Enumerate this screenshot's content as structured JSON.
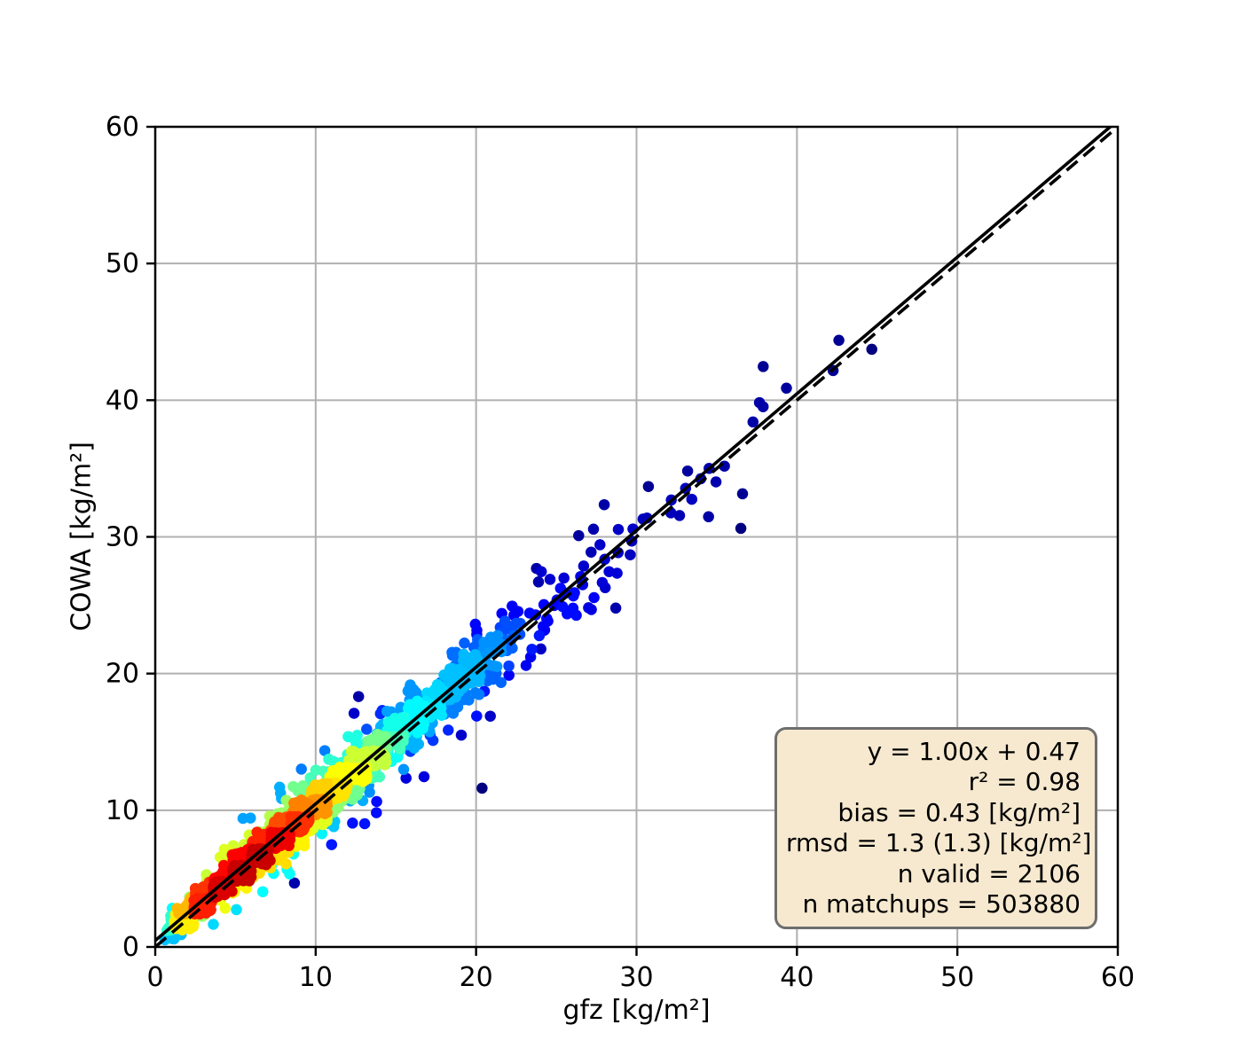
{
  "chart_data": {
    "type": "scatter",
    "subtype": "density-colored validation scatterplot (jet colormap: navy = sparse, red = dense)",
    "title": "",
    "xlabel": "gfz [kg/m²]",
    "ylabel": "COWA [kg/m²]",
    "xlim": [
      0,
      60
    ],
    "ylim": [
      0,
      60
    ],
    "xticks": [
      0,
      10,
      20,
      30,
      40,
      50,
      60
    ],
    "yticks": [
      0,
      10,
      20,
      30,
      40,
      50,
      60
    ],
    "grid": true,
    "grid_color": "#b0b0b0",
    "axis_color": "#000000",
    "identity_line": {
      "style": "dashed",
      "color": "#000000",
      "from": [
        0,
        0
      ],
      "to": [
        60,
        60
      ]
    },
    "fit_line": {
      "style": "solid",
      "color": "#000000",
      "slope": 1.0,
      "intercept": 0.47
    },
    "fit_equation": "y = 1.00x + 0.47",
    "r_squared": 0.98,
    "bias": 0.43,
    "rmsd": "1.3 (1.3)",
    "n_valid": 2106,
    "n_matchups": 503880,
    "points_spec": {
      "note": "approx. reconstruction of the point cloud read from pixels",
      "n": 2106,
      "seed": 20240,
      "x_distribution": "gamma(k=2, theta=4.5), clipped to [0.5, 48], bulk 1-35, sparse navy points up to ~47.5",
      "y_model": "y = x + 0.45 + N(0, 0.35 + 0.045x); 8% of points with 2.6x inflated scatter (navy outliers)",
      "color_rule": "local 2D density mapped through jet colormap; dense core red/orange at x≈3-13, yellow-green to ~16, cyan ~16-22, blue ~22-30, navy beyond",
      "marker_diameter_px": 12.5
    }
  },
  "stats_box": {
    "lines": [
      "y = 1.00x + 0.47",
      "r² = 0.98",
      "bias = 0.43 [kg/m²]",
      "rmsd = 1.3 (1.3) [kg/m²]",
      "n valid = 2106",
      "n matchups = 503880"
    ],
    "background": "#f6e9cf",
    "border_color": "#6e6e6e"
  }
}
